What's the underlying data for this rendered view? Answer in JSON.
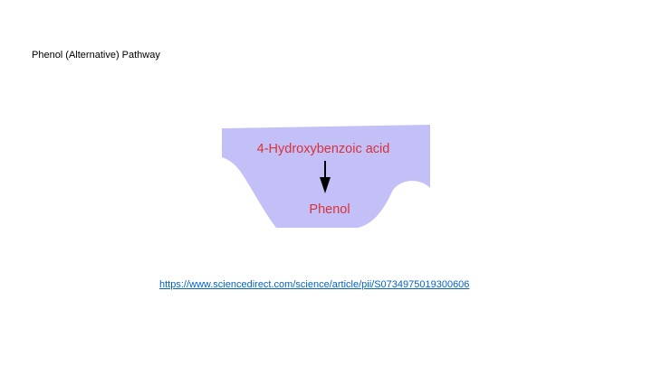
{
  "slide": {
    "title": "Phenol (Alternative) Pathway"
  },
  "pathway": {
    "substrate": "4-Hydroxybenzoic acid",
    "product": "Phenol",
    "colors": {
      "background_blob": "#c3c0f7",
      "compound_text": "#d8323a",
      "arrow": "#000000"
    }
  },
  "source": {
    "link_text": "https://www.sciencedirect.com/science/article/pii/S0734975019300606",
    "color": "#0563c1"
  }
}
